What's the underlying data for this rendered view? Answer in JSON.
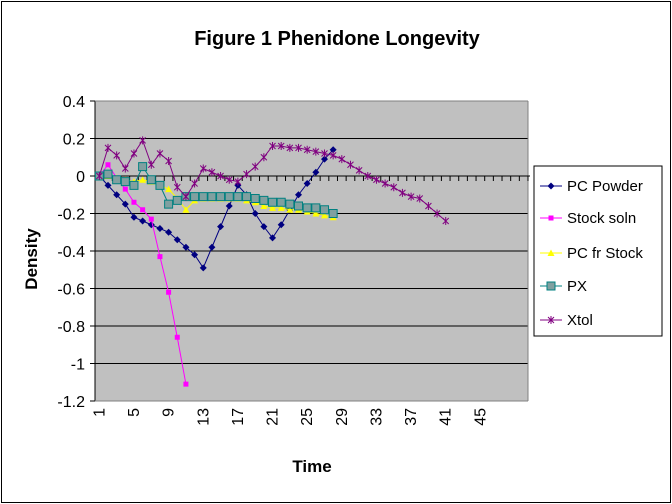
{
  "chart_data": {
    "type": "line",
    "title": "Figure 1 Phenidone Longevity",
    "xlabel": "Time",
    "ylabel": "Density",
    "ylim": [
      -1.2,
      0.4
    ],
    "xlim": [
      1,
      50
    ],
    "x_ticks": [
      "1",
      "5",
      "9",
      "13",
      "17",
      "21",
      "25",
      "29",
      "33",
      "37",
      "41",
      "45"
    ],
    "x_tick_values": [
      1,
      5,
      9,
      13,
      17,
      21,
      25,
      29,
      33,
      37,
      41,
      45
    ],
    "y_ticks": [
      "0.4",
      "0.2",
      "0",
      "-0.2",
      "-0.4",
      "-0.6",
      "-0.8",
      "-1",
      "-1.2"
    ],
    "y_tick_values": [
      0.4,
      0.2,
      0,
      -0.2,
      -0.4,
      -0.6,
      -0.8,
      -1,
      -1.2
    ],
    "plot_background": "#c0c0c0",
    "grid": true,
    "legend_position": "right",
    "series": [
      {
        "name": "PC Powder",
        "color": "#000080",
        "marker": "diamond",
        "x": [
          1,
          2,
          3,
          4,
          5,
          6,
          7,
          8,
          9,
          10,
          11,
          12,
          13,
          14,
          15,
          16,
          17,
          18,
          19,
          20,
          21,
          22,
          23,
          24,
          25,
          26,
          27,
          28
        ],
        "values": [
          0,
          -0.05,
          -0.1,
          -0.15,
          -0.22,
          -0.24,
          -0.26,
          -0.28,
          -0.3,
          -0.34,
          -0.38,
          -0.42,
          -0.49,
          -0.38,
          -0.27,
          -0.16,
          -0.05,
          -0.1,
          -0.2,
          -0.27,
          -0.33,
          -0.26,
          -0.18,
          -0.1,
          -0.04,
          0.02,
          0.09,
          0.14
        ]
      },
      {
        "name": "Stock soln",
        "color": "#ff00ff",
        "marker": "square",
        "x": [
          1,
          2,
          3,
          4,
          5,
          6,
          7,
          8,
          9,
          10,
          11
        ],
        "values": [
          0,
          0.06,
          -0.01,
          -0.07,
          -0.14,
          -0.18,
          -0.23,
          -0.43,
          -0.62,
          -0.86,
          -1.11
        ]
      },
      {
        "name": "PC fr Stock",
        "color": "#ffff00",
        "marker": "triangle",
        "x": [
          1,
          2,
          3,
          4,
          5,
          6,
          7,
          8,
          9,
          10,
          11,
          12,
          13,
          14,
          15,
          16,
          17,
          18,
          19,
          20,
          21,
          22,
          23,
          24,
          25,
          26,
          27,
          28
        ],
        "values": [
          0,
          0,
          -0.01,
          -0.02,
          -0.03,
          -0.02,
          -0.03,
          -0.05,
          -0.07,
          -0.12,
          -0.18,
          -0.13,
          -0.12,
          -0.12,
          -0.12,
          -0.12,
          -0.12,
          -0.13,
          -0.14,
          -0.16,
          -0.17,
          -0.17,
          -0.18,
          -0.18,
          -0.19,
          -0.2,
          -0.21,
          -0.22
        ]
      },
      {
        "name": "PX",
        "color": "#008080",
        "marker": "square-large",
        "x": [
          1,
          2,
          3,
          4,
          5,
          6,
          7,
          8,
          9,
          10,
          11,
          12,
          13,
          14,
          15,
          16,
          17,
          18,
          19,
          20,
          21,
          22,
          23,
          24,
          25,
          26,
          27,
          28
        ],
        "values": [
          0,
          0.01,
          -0.02,
          -0.03,
          -0.05,
          0.05,
          -0.02,
          -0.05,
          -0.15,
          -0.13,
          -0.11,
          -0.11,
          -0.11,
          -0.11,
          -0.11,
          -0.11,
          -0.11,
          -0.11,
          -0.12,
          -0.13,
          -0.14,
          -0.14,
          -0.15,
          -0.16,
          -0.17,
          -0.17,
          -0.18,
          -0.2
        ]
      },
      {
        "name": "Xtol",
        "color": "#800080",
        "marker": "star",
        "x": [
          1,
          2,
          3,
          4,
          5,
          6,
          7,
          8,
          9,
          10,
          11,
          12,
          13,
          14,
          15,
          16,
          17,
          18,
          19,
          20,
          21,
          22,
          23,
          24,
          25,
          26,
          27,
          28,
          29,
          30,
          31,
          32,
          33,
          34,
          35,
          36,
          37,
          38,
          39,
          40,
          41
        ],
        "values": [
          0,
          0.15,
          0.11,
          0.04,
          0.12,
          0.19,
          0.06,
          0.12,
          0.08,
          -0.06,
          -0.11,
          -0.04,
          0.04,
          0.02,
          0.0,
          -0.02,
          -0.03,
          0.01,
          0.05,
          0.1,
          0.16,
          0.16,
          0.15,
          0.15,
          0.14,
          0.13,
          0.12,
          0.11,
          0.09,
          0.06,
          0.03,
          0.0,
          -0.02,
          -0.04,
          -0.06,
          -0.09,
          -0.11,
          -0.12,
          -0.16,
          -0.2,
          -0.24
        ]
      }
    ]
  }
}
